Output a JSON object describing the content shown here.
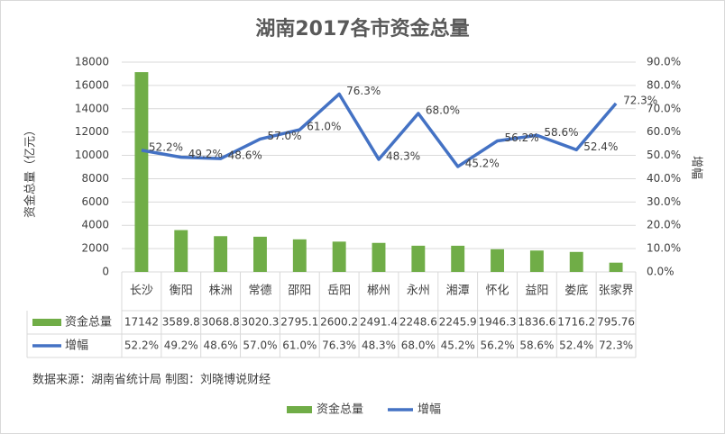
{
  "chart_data": {
    "type": "bar",
    "title": "湖南2017各市资金总量",
    "y_label": "资金总量（亿元）",
    "y2_label": "增幅",
    "source": "数据来源：湖南省统计局 制图：刘晓博说财经",
    "categories": [
      "长沙",
      "衡阳",
      "株洲",
      "常德",
      "邵阳",
      "岳阳",
      "郴州",
      "永州",
      "湘潭",
      "怀化",
      "益阳",
      "娄底",
      "张家界"
    ],
    "series": [
      {
        "name": "资金总量",
        "type": "bar",
        "color": "#70ad47",
        "values": [
          17142,
          3589.8,
          3068.8,
          3020.3,
          2795.1,
          2600.2,
          2491.4,
          2248.6,
          2245.9,
          1946.3,
          1836.6,
          1716.2,
          795.76
        ]
      },
      {
        "name": "增幅",
        "type": "line",
        "axis": "y2",
        "color": "#4472c4",
        "values": [
          52.2,
          49.2,
          48.6,
          57.0,
          61.0,
          76.3,
          48.3,
          68.0,
          45.2,
          56.2,
          58.6,
          52.4,
          72.3
        ],
        "value_labels": [
          "52.2%",
          "49.2%",
          "48.6%",
          "57.0%",
          "61.0%",
          "76.3%",
          "48.3%",
          "68.0%",
          "45.2%",
          "56.2%",
          "58.6%",
          "52.4%",
          "72.3%"
        ]
      }
    ],
    "ylim": [
      0,
      18000
    ],
    "yticks": [
      0,
      2000,
      4000,
      6000,
      8000,
      10000,
      12000,
      14000,
      16000,
      18000
    ],
    "y2lim": [
      0,
      90
    ],
    "y2ticks": [
      {
        "value": 0,
        "label": "0.0%"
      },
      {
        "value": 10,
        "label": "10.0%"
      },
      {
        "value": 20,
        "label": "20.0%"
      },
      {
        "value": 30,
        "label": "30.0%"
      },
      {
        "value": 40,
        "label": "40.0%"
      },
      {
        "value": 50,
        "label": "50.0%"
      },
      {
        "value": 60,
        "label": "60.0%"
      },
      {
        "value": 70,
        "label": "70.0%"
      },
      {
        "value": 80,
        "label": "80.0%"
      },
      {
        "value": 90,
        "label": "90.0%"
      }
    ],
    "grid": true
  }
}
